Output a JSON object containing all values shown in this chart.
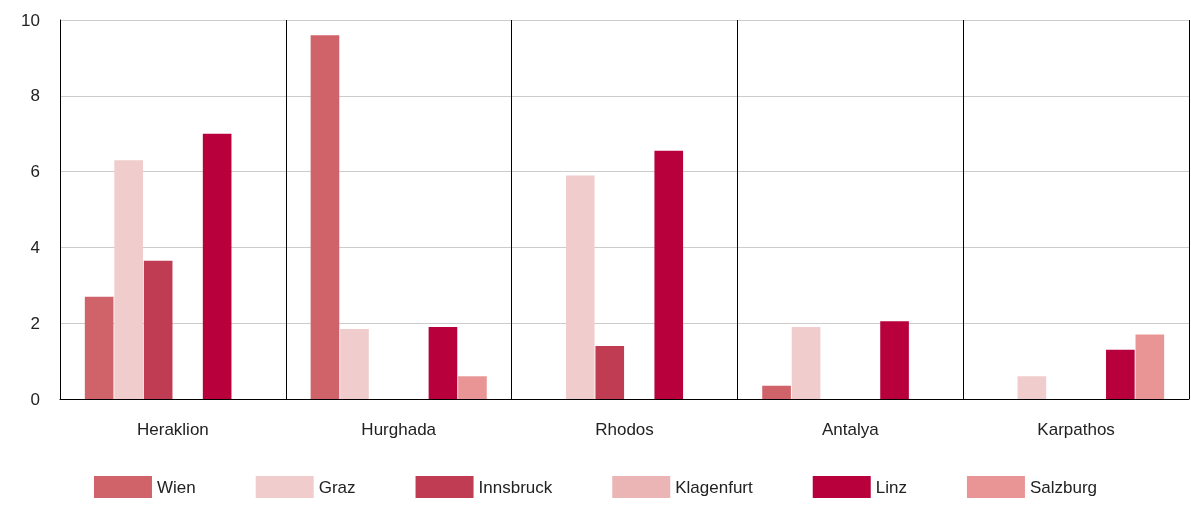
{
  "chart_data": {
    "type": "bar",
    "categories": [
      "Heraklion",
      "Hurghada",
      "Rhodos",
      "Antalya",
      "Karpathos"
    ],
    "series": [
      {
        "name": "Wien",
        "color": "#d0636a",
        "values": [
          2.7,
          9.6,
          null,
          0.35,
          null
        ]
      },
      {
        "name": "Graz",
        "color": "#f0cccc",
        "values": [
          6.3,
          1.85,
          5.9,
          1.9,
          0.6
        ]
      },
      {
        "name": "Innsbruck",
        "color": "#c03c52",
        "values": [
          3.65,
          null,
          1.4,
          null,
          null
        ]
      },
      {
        "name": "Klagenfurt",
        "color": "#ecb5b5",
        "values": [
          null,
          null,
          null,
          null,
          null
        ]
      },
      {
        "name": "Linz",
        "color": "#b8003c",
        "values": [
          7.0,
          1.9,
          6.55,
          2.05,
          1.3
        ]
      },
      {
        "name": "Salzburg",
        "color": "#e99595",
        "values": [
          null,
          0.6,
          null,
          null,
          1.7
        ]
      }
    ],
    "ylim": [
      0,
      10
    ],
    "yticks": [
      0,
      2,
      4,
      6,
      8,
      10
    ],
    "grid": true,
    "legend": "bottom"
  }
}
